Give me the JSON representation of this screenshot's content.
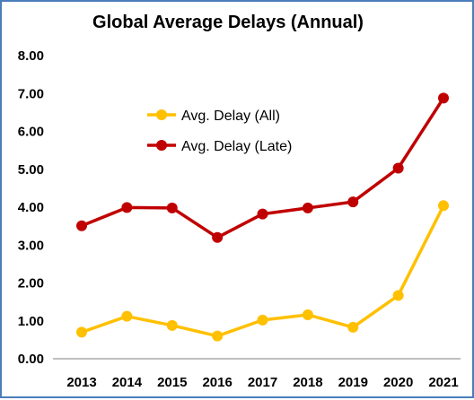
{
  "chart_data": {
    "type": "line",
    "title": "Global Average Delays (Annual)",
    "xlabel": "",
    "ylabel": "",
    "x": [
      "2013",
      "2014",
      "2015",
      "2016",
      "2017",
      "2018",
      "2019",
      "2020",
      "2021"
    ],
    "ylim": [
      0,
      8
    ],
    "y_ticks": [
      "0.00",
      "1.00",
      "2.00",
      "3.00",
      "4.00",
      "5.00",
      "6.00",
      "7.00",
      "8.00"
    ],
    "grid": false,
    "legend_position": "top-left inside plot",
    "series": [
      {
        "name": "Avg. Delay (All)",
        "color": "#ffc000",
        "values": [
          0.7,
          1.12,
          0.88,
          0.6,
          1.02,
          1.16,
          0.83,
          1.67,
          4.04
        ]
      },
      {
        "name": "Avg. Delay (Late)",
        "color": "#c00000",
        "values": [
          3.51,
          3.99,
          3.98,
          3.2,
          3.82,
          3.98,
          4.14,
          5.03,
          6.88
        ]
      }
    ]
  }
}
